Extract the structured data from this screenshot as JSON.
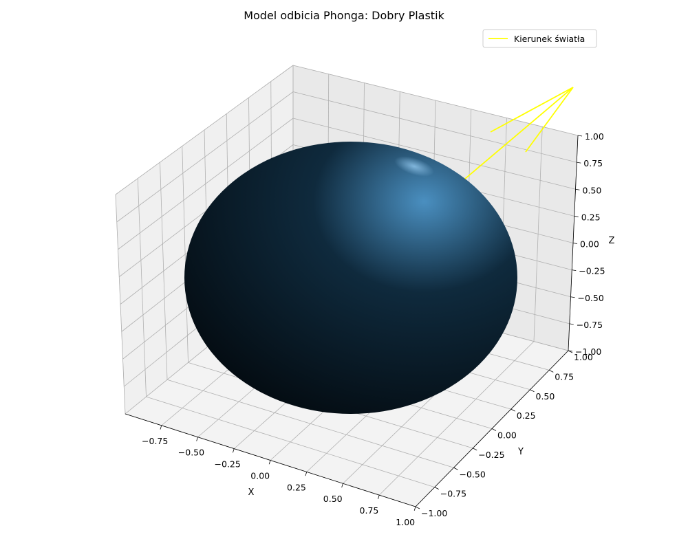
{
  "chart_data": {
    "type": "surface3d",
    "title": "Model odbicia Phonga: Dobry Plastik",
    "xlabel": "X",
    "ylabel": "Y",
    "zlabel": "Z",
    "xlim": [
      -1.0,
      1.0
    ],
    "ylim": [
      -1.0,
      1.0
    ],
    "zlim": [
      -1.0,
      1.0
    ],
    "x_ticks": [
      "−0.75",
      "−0.50",
      "−0.25",
      "0.00",
      "0.25",
      "0.50",
      "0.75",
      "1.00"
    ],
    "y_ticks": [
      "−1.00",
      "−0.75",
      "−0.50",
      "−0.25",
      "0.00",
      "0.25",
      "0.50",
      "0.75",
      "1.00"
    ],
    "z_ticks": [
      "−1.00",
      "−0.75",
      "−0.50",
      "−0.25",
      "0.00",
      "0.25",
      "0.50",
      "0.75",
      "1.00"
    ],
    "grid": true,
    "legend": {
      "position": "top-right",
      "entries": [
        {
          "label": "Kierunek światła",
          "color": "#ffff00"
        }
      ]
    },
    "surface": {
      "shape": "sphere",
      "radius": 1.0,
      "base_color": "#0f2a3d",
      "highlight_color": "#4a8fc0",
      "shadow_color": "#02070b"
    },
    "light_lines": {
      "color": "#ffff00",
      "count": 3
    }
  }
}
